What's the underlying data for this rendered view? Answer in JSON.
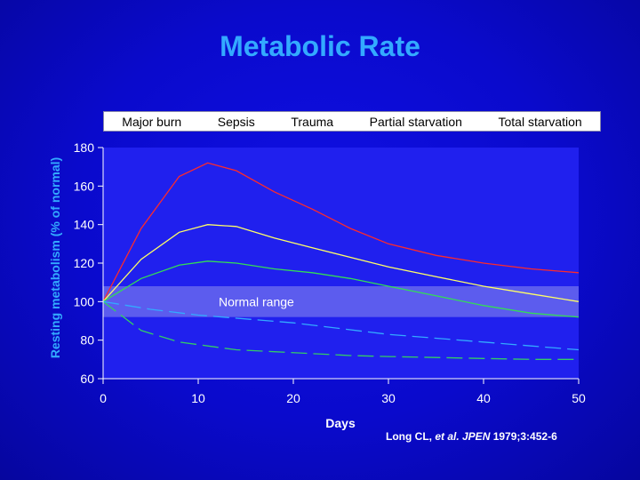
{
  "slide": {
    "title": "Metabolic Rate",
    "citation": {
      "author": "Long CL, ",
      "etal": "et al. JPEN",
      "rest": " 1979;3:452-6"
    }
  },
  "chart_data": {
    "type": "line",
    "title": "Metabolic Rate",
    "xlabel": "Days",
    "ylabel": "Resting metabolism (% of normal)",
    "xlim": [
      0,
      50
    ],
    "ylim": [
      60,
      180
    ],
    "xticks": [
      0,
      10,
      20,
      30,
      40,
      50
    ],
    "yticks": [
      60,
      80,
      100,
      120,
      140,
      160,
      180
    ],
    "legend_position": "top",
    "legend": [
      "Major burn",
      "Sepsis",
      "Trauma",
      "Partial starvation",
      "Total starvation"
    ],
    "normal_range": {
      "label": "Normal range",
      "low": 92,
      "high": 108
    },
    "colors": {
      "background": "#0a0acc",
      "plot_area": "#2020ee",
      "band": "#5c5cee",
      "axis": "#ffffff",
      "title": "#33aaff"
    },
    "series": [
      {
        "name": "Major burn",
        "color": "#ff2a2a",
        "dash": "solid",
        "x": [
          0,
          4,
          8,
          11,
          14,
          18,
          22,
          26,
          30,
          35,
          40,
          45,
          50
        ],
        "y": [
          100,
          138,
          165,
          172,
          168,
          157,
          148,
          138,
          130,
          124,
          120,
          117,
          115
        ]
      },
      {
        "name": "Sepsis",
        "color": "#ffff66",
        "dash": "solid",
        "x": [
          0,
          4,
          8,
          11,
          14,
          18,
          22,
          26,
          30,
          35,
          40,
          45,
          50
        ],
        "y": [
          100,
          122,
          136,
          140,
          139,
          133,
          128,
          123,
          118,
          113,
          108,
          104,
          100
        ]
      },
      {
        "name": "Trauma",
        "color": "#33dd55",
        "dash": "solid",
        "x": [
          0,
          4,
          8,
          11,
          14,
          18,
          22,
          26,
          30,
          35,
          40,
          45,
          50
        ],
        "y": [
          100,
          112,
          119,
          121,
          120,
          117,
          115,
          112,
          108,
          103,
          98,
          94,
          92
        ]
      },
      {
        "name": "Partial starvation",
        "color": "#33cc66",
        "dash": "dashed",
        "x": [
          0,
          4,
          8,
          11,
          14,
          18,
          22,
          26,
          30,
          35,
          40,
          45,
          50
        ],
        "y": [
          100,
          85,
          79,
          77,
          75,
          74,
          73,
          72,
          71.5,
          71,
          70.5,
          70,
          70
        ]
      },
      {
        "name": "Total starvation",
        "color": "#33aaff",
        "dash": "dashed",
        "x": [
          0,
          5,
          10,
          15,
          20,
          25,
          30,
          35,
          40,
          45,
          50
        ],
        "y": [
          100,
          96,
          93,
          91,
          89,
          86,
          83,
          81,
          79,
          77,
          75
        ]
      }
    ]
  }
}
